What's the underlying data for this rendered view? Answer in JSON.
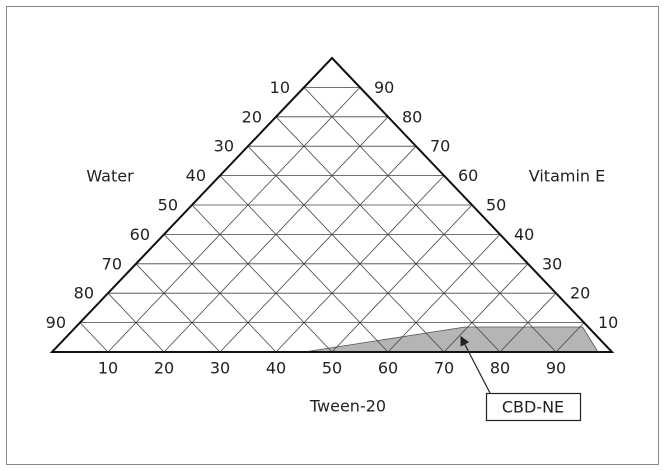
{
  "chart_data": {
    "type": "ternary",
    "bottom_axis": {
      "label": "Tween-20",
      "ticks": [
        10,
        20,
        30,
        40,
        50,
        60,
        70,
        80,
        90
      ]
    },
    "left_axis": {
      "label": "Water",
      "ticks": [
        10,
        20,
        30,
        40,
        50,
        60,
        70,
        80,
        90
      ]
    },
    "right_axis": {
      "label": "Vitamin E",
      "ticks": [
        90,
        80,
        70,
        60,
        50,
        40,
        30,
        20,
        10
      ]
    },
    "region": {
      "label": "CBD-NE",
      "color": "#b5b5b5",
      "points": [
        [
          45,
          0
        ],
        [
          69.5,
          8.5
        ],
        [
          90.5,
          8.5
        ],
        [
          97.5,
          0
        ]
      ]
    }
  }
}
